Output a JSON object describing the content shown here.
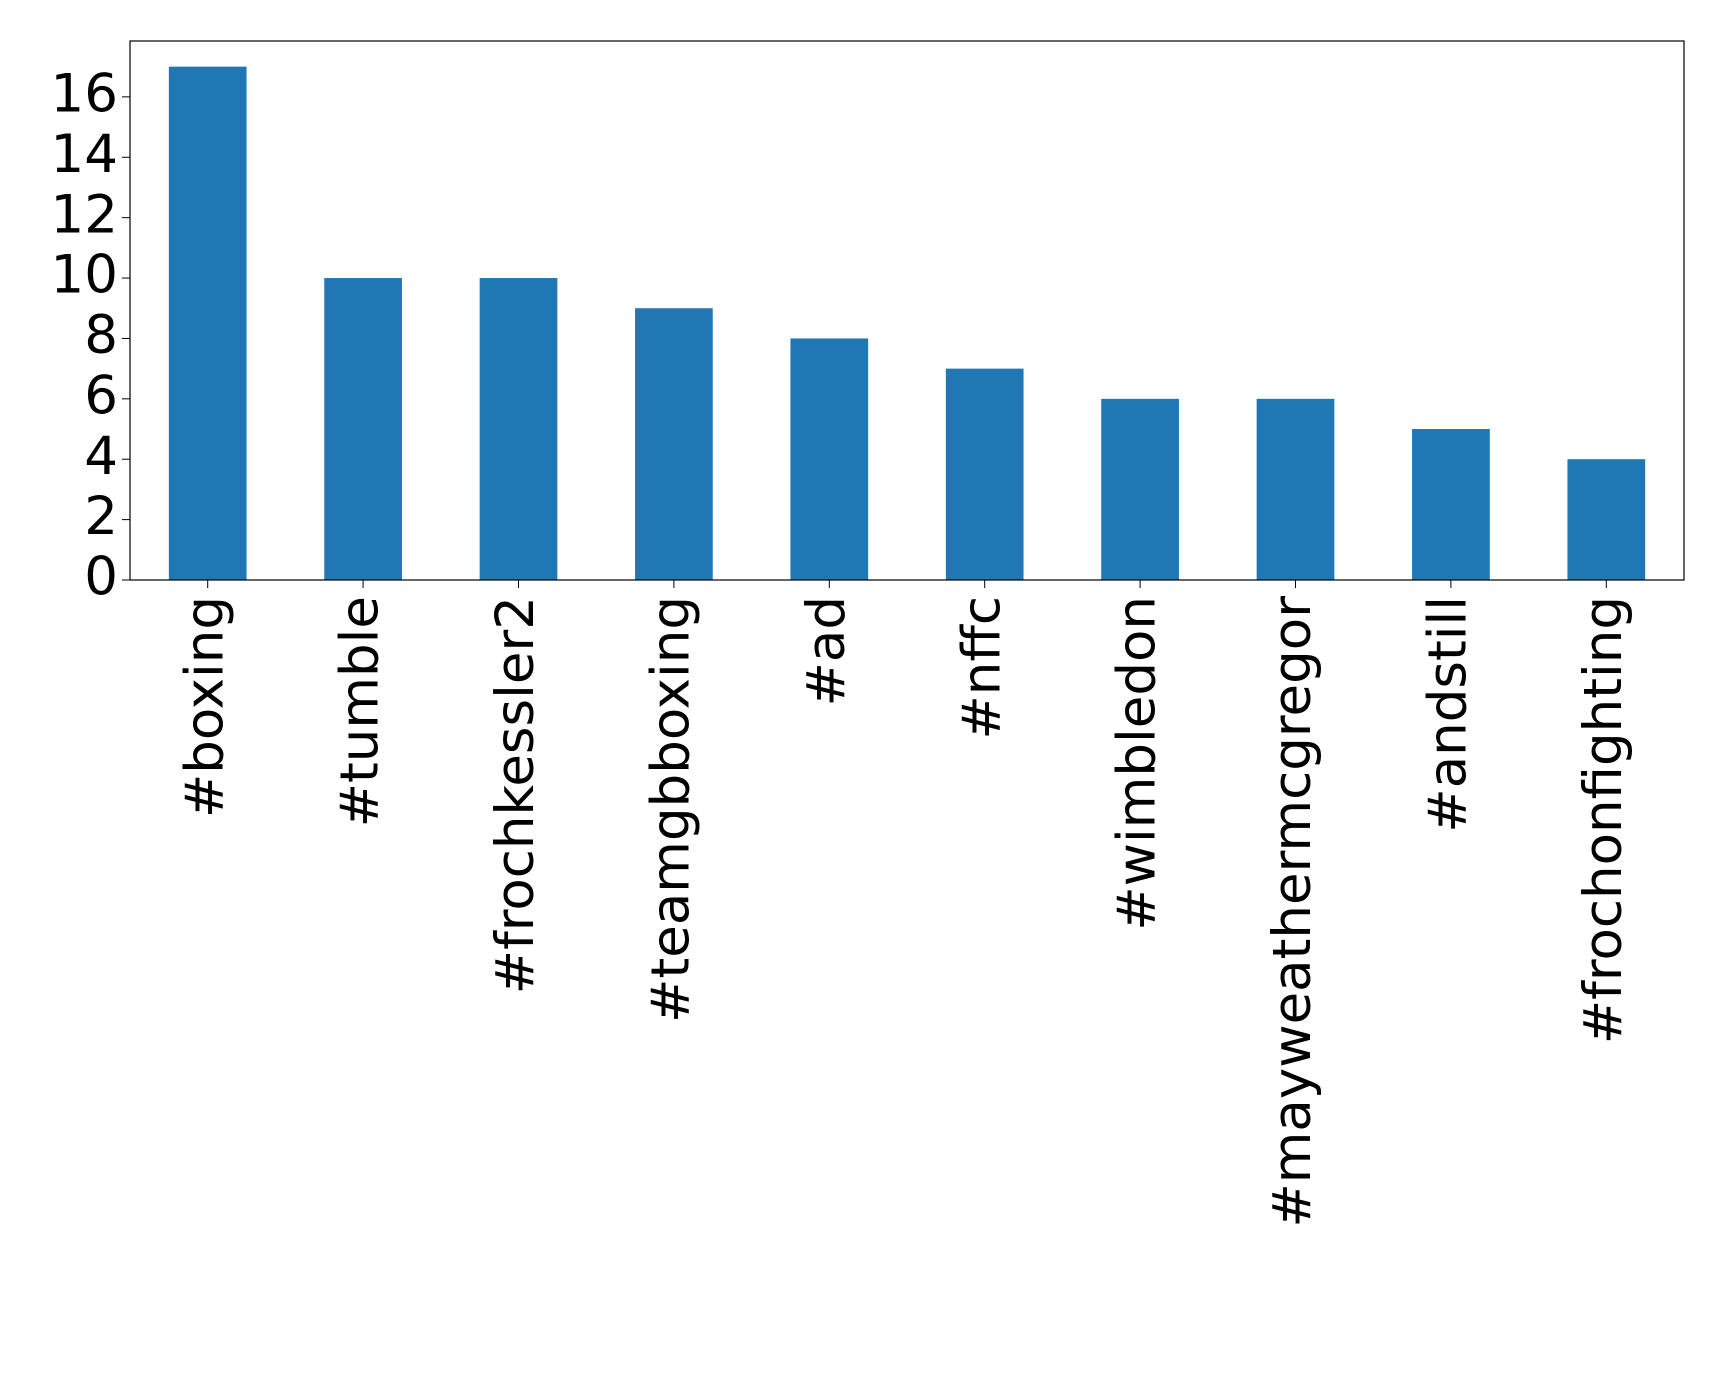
{
  "chart_data": {
    "type": "bar",
    "categories": [
      "#boxing",
      "#tumble",
      "#frochkessler2",
      "#teamgbboxing",
      "#ad",
      "#nffc",
      "#wimbledon",
      "#mayweathermcgregor",
      "#andstill",
      "#frochonfighting"
    ],
    "values": [
      17,
      10,
      10,
      9,
      8,
      7,
      6,
      6,
      5,
      4
    ],
    "color": "#1f77b4",
    "ylim": [
      0,
      17.85
    ],
    "yticks": [
      0,
      2,
      4,
      6,
      8,
      10,
      12,
      14,
      16
    ],
    "grid": false
  }
}
